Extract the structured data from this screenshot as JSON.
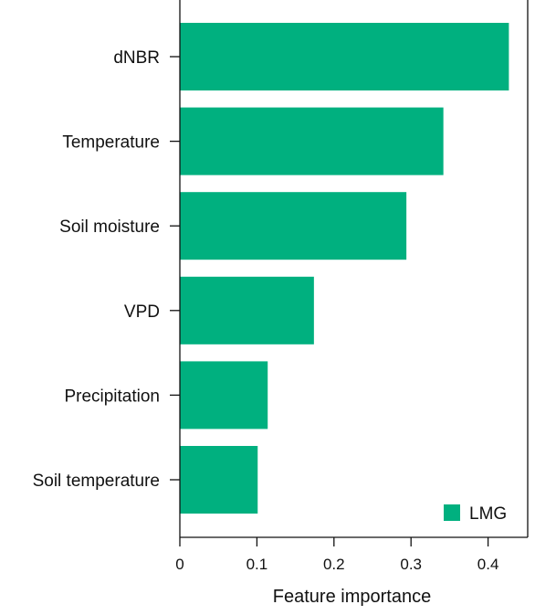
{
  "chart_data": {
    "type": "bar",
    "orientation": "horizontal",
    "categories": [
      "dNBR",
      "Temperature",
      "Soil moisture",
      "VPD",
      "Precipitation",
      "Soil temperature"
    ],
    "series": [
      {
        "name": "LMG",
        "values": [
          0.427,
          0.342,
          0.294,
          0.174,
          0.114,
          0.101
        ],
        "color": "#00b07f"
      }
    ],
    "xlabel": "Feature importance",
    "xlim": [
      0,
      0.45
    ],
    "xticks": [
      0,
      0.1,
      0.2,
      0.3,
      0.4
    ],
    "xtick_labels": [
      "0",
      "0.1",
      "0.2",
      "0.3",
      "0.4"
    ],
    "grid": false,
    "legend": {
      "position": "bottom-right",
      "label": "LMG"
    }
  }
}
